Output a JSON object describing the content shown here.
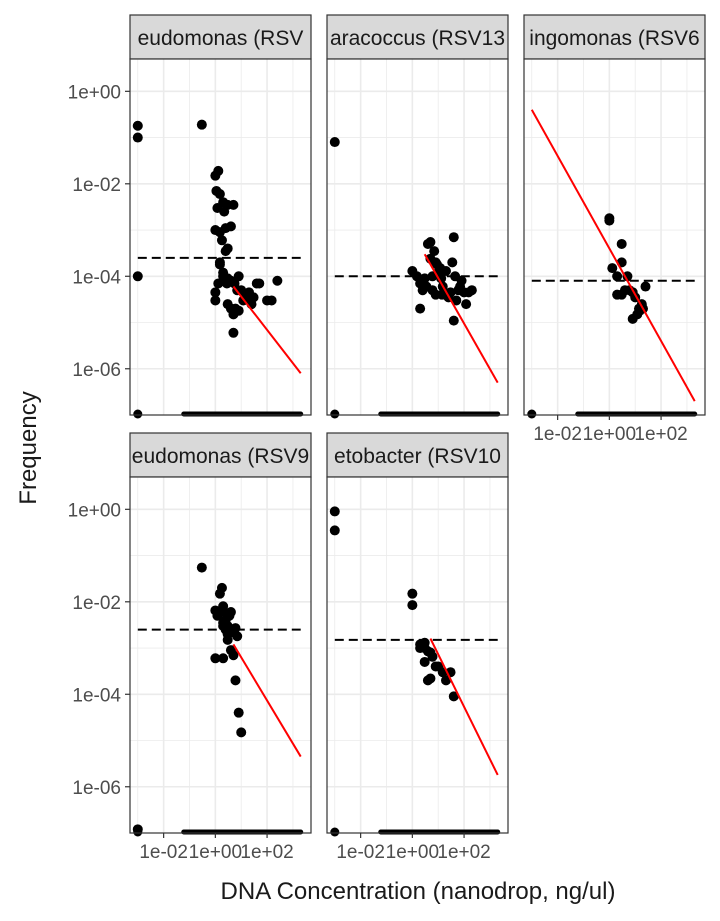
{
  "chart_data": {
    "type": "scatter",
    "facet_layout": "3 columns, 2 rows, free x-axis ticks only on bottom panels",
    "xlabel": "DNA Concentration (nanodrop, ng/ul)",
    "ylabel": "Frequency",
    "x_scale": "log10",
    "y_scale": "log10",
    "x_ticks": [
      {
        "value": 0.01,
        "label": "1e-02"
      },
      {
        "value": 1,
        "label": "1e+00"
      },
      {
        "value": 100,
        "label": "1e+02"
      }
    ],
    "y_ticks": [
      {
        "value": 1,
        "label": "1e+00"
      },
      {
        "value": 0.01,
        "label": "1e-02"
      },
      {
        "value": 0.0001,
        "label": "1e-04"
      },
      {
        "value": 1e-06,
        "label": "1e-06"
      }
    ],
    "xlim": [
      0.0005,
      5000
    ],
    "ylim": [
      1e-07,
      5
    ],
    "grid": true,
    "colors": {
      "panel_strip": "#d9d9d9",
      "grid": "#ebebeb",
      "point": "#000000",
      "fit_line": "#ff0000",
      "reference_line": "#000000"
    },
    "panels": [
      {
        "strip": "eudomonas (RSV",
        "ref_y": 0.00025,
        "fit": {
          "x1": 5,
          "y1": 6e-05,
          "x2": 2000,
          "y2": 8e-07
        },
        "zero_band": {
          "x_from": 0.06,
          "x_to": 2000
        },
        "points": [
          [
            0.001,
            0.18
          ],
          [
            0.001,
            0.1
          ],
          [
            0.001,
            0.0001
          ],
          [
            0.3,
            0.19
          ],
          [
            1,
            0.015
          ],
          [
            1.3,
            0.019
          ],
          [
            1.1,
            0.007
          ],
          [
            1.5,
            0.006
          ],
          [
            2,
            0.004
          ],
          [
            3,
            0.0035
          ],
          [
            1.2,
            0.003
          ],
          [
            2.2,
            0.0025
          ],
          [
            1,
            0.001
          ],
          [
            1.5,
            0.0009
          ],
          [
            2.5,
            0.0011
          ],
          [
            4,
            0.0012
          ],
          [
            5,
            0.0035
          ],
          [
            1.8,
            0.0006
          ],
          [
            2.5,
            0.00035
          ],
          [
            1.5,
            0.00018
          ],
          [
            2,
            0.0001
          ],
          [
            3,
            9e-05
          ],
          [
            1.3,
            7e-05
          ],
          [
            2.8,
            7e-05
          ],
          [
            4,
            8e-05
          ],
          [
            5.5,
            7e-05
          ],
          [
            7,
            5e-05
          ],
          [
            8,
            0.0001
          ],
          [
            10,
            5e-05
          ],
          [
            12,
            3e-05
          ],
          [
            15,
            3.5e-05
          ],
          [
            20,
            4.5e-05
          ],
          [
            25,
            2.5e-05
          ],
          [
            30,
            3.5e-05
          ],
          [
            40,
            7e-05
          ],
          [
            50,
            7e-05
          ],
          [
            100,
            3e-05
          ],
          [
            150,
            3e-05
          ],
          [
            250,
            8e-05
          ],
          [
            1,
            4.5e-05
          ],
          [
            1,
            3e-05
          ],
          [
            3,
            2.5e-05
          ],
          [
            4,
            2e-05
          ],
          [
            5,
            1.5e-05
          ],
          [
            6,
            2e-05
          ],
          [
            8,
            1.8e-05
          ],
          [
            5,
            6e-06
          ],
          [
            2,
            0.00012
          ],
          [
            3,
            0.0004
          ],
          [
            1.5,
            0.0002
          ]
        ]
      },
      {
        "strip": "aracoccus (RSV13",
        "ref_y": 0.0001,
        "fit": {
          "x1": 3,
          "y1": 0.0003,
          "x2": 2000,
          "y2": 5e-07
        },
        "zero_band": {
          "x_from": 0.06,
          "x_to": 2000
        },
        "points": [
          [
            0.001,
            0.08
          ],
          [
            1,
            0.00013
          ],
          [
            1.5,
            0.0001
          ],
          [
            2,
            7e-05
          ],
          [
            2.5,
            5e-05
          ],
          [
            3,
            9e-05
          ],
          [
            3.5,
            6e-05
          ],
          [
            4,
            0.0005
          ],
          [
            5,
            0.00055
          ],
          [
            5,
            0.00024
          ],
          [
            6,
            0.0001
          ],
          [
            6,
            5e-05
          ],
          [
            7,
            0.00035
          ],
          [
            8,
            0.0002
          ],
          [
            9,
            0.00018
          ],
          [
            10,
            0.00012
          ],
          [
            12,
            0.00015
          ],
          [
            13,
            9e-05
          ],
          [
            14,
            4e-05
          ],
          [
            15,
            6e-05
          ],
          [
            20,
            0.00013
          ],
          [
            25,
            3.5e-05
          ],
          [
            30,
            4.5e-05
          ],
          [
            35,
            0.0002
          ],
          [
            40,
            0.0007
          ],
          [
            45,
            0.0001
          ],
          [
            50,
            3e-05
          ],
          [
            70,
            6e-05
          ],
          [
            80,
            8e-05
          ],
          [
            100,
            4.5e-05
          ],
          [
            120,
            2.5e-05
          ],
          [
            150,
            4.5e-05
          ],
          [
            200,
            5e-05
          ],
          [
            40,
            1.1e-05
          ],
          [
            2,
            2e-05
          ],
          [
            8,
            4e-05
          ],
          [
            60,
            5e-05
          ]
        ]
      },
      {
        "strip": "ingomonas (RSV6",
        "ref_y": 8e-05,
        "fit": {
          "x1": 0.001,
          "y1": 0.4,
          "x2": 2000,
          "y2": 2e-07
        },
        "zero_band": {
          "x_from": 0.06,
          "x_to": 2000
        },
        "points": [
          [
            1,
            0.0018
          ],
          [
            1,
            0.0016
          ],
          [
            1.3,
            0.00015
          ],
          [
            2,
            0.0001
          ],
          [
            3,
            0.0005
          ],
          [
            3,
            0.0002
          ],
          [
            3,
            4e-05
          ],
          [
            4,
            5e-05
          ],
          [
            5,
            0.0001
          ],
          [
            2,
            4e-05
          ],
          [
            6,
            5e-05
          ],
          [
            8,
            4.5e-05
          ],
          [
            10,
            3.5e-05
          ],
          [
            12,
            1.5e-05
          ],
          [
            14,
            2e-05
          ],
          [
            18,
            2.5e-05
          ],
          [
            20,
            2e-05
          ],
          [
            25,
            6e-05
          ],
          [
            8,
            1.2e-05
          ],
          [
            15,
            1.8e-05
          ]
        ]
      },
      {
        "strip": "eudomonas (RSV9",
        "ref_y": 0.0025,
        "fit": {
          "x1": 5,
          "y1": 0.0012,
          "x2": 2000,
          "y2": 4.5e-06
        },
        "zero_band": {
          "x_from": 0.06,
          "x_to": 2000
        },
        "points": [
          [
            0.001,
            1.2e-07
          ],
          [
            0.3,
            0.055
          ],
          [
            1,
            0.0065
          ],
          [
            1.2,
            0.005
          ],
          [
            1.5,
            0.015
          ],
          [
            1.8,
            0.02
          ],
          [
            2,
            0.008
          ],
          [
            2.2,
            0.006
          ],
          [
            2.5,
            0.004
          ],
          [
            3,
            0.003
          ],
          [
            3.5,
            0.005
          ],
          [
            4,
            0.006
          ],
          [
            5,
            0.0022
          ],
          [
            6,
            0.0027
          ],
          [
            7,
            0.0018
          ],
          [
            2,
            0.003
          ],
          [
            2.5,
            0.0025
          ],
          [
            3,
            0.0015
          ],
          [
            4,
            0.0009
          ],
          [
            5,
            0.0007
          ],
          [
            2,
            0.0006
          ],
          [
            1,
            0.0006
          ],
          [
            6,
            0.0002
          ],
          [
            8,
            4e-05
          ],
          [
            10,
            1.5e-05
          ],
          [
            3,
            0.002
          ],
          [
            2,
            0.0035
          ]
        ]
      },
      {
        "strip": "etobacter (RSV10",
        "ref_y": 0.0015,
        "fit": {
          "x1": 5,
          "y1": 0.0016,
          "x2": 2000,
          "y2": 1.8e-06
        },
        "zero_band": {
          "x_from": 0.06,
          "x_to": 2000
        },
        "points": [
          [
            0.001,
            0.9
          ],
          [
            0.001,
            0.35
          ],
          [
            1,
            0.015
          ],
          [
            1,
            0.0085
          ],
          [
            2,
            0.001
          ],
          [
            3,
            0.001
          ],
          [
            4,
            0.00085
          ],
          [
            5,
            0.0008
          ],
          [
            6,
            0.00065
          ],
          [
            3,
            0.0005
          ],
          [
            4,
            0.0002
          ],
          [
            5,
            0.00022
          ],
          [
            8,
            0.0004
          ],
          [
            10,
            0.0004
          ],
          [
            15,
            0.0003
          ],
          [
            20,
            0.0002
          ],
          [
            30,
            0.0003
          ],
          [
            40,
            9e-05
          ],
          [
            2,
            0.0012
          ],
          [
            3,
            0.0013
          ]
        ]
      }
    ]
  }
}
